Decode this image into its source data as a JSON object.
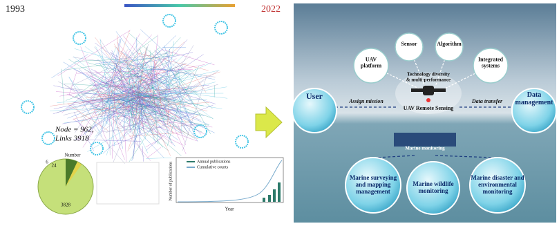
{
  "left": {
    "year_start": "1993",
    "year_end": "2022",
    "node_label": "Node = 962,",
    "links_label": "Links  3918",
    "pie": {
      "title": "Number",
      "labels": [
        "6",
        "24",
        "3828"
      ]
    },
    "line_chart": {
      "legend": [
        "Annual publications",
        "Cumulative counts"
      ],
      "y_label": "Number of publications",
      "x_label": "Year"
    }
  },
  "right": {
    "top_nodes": [
      [
        "UAV",
        "platform"
      ],
      [
        "Sensor"
      ],
      [
        "Algorithm"
      ],
      [
        "Integrated",
        "systems"
      ]
    ],
    "center": [
      "Technology diversity",
      "& multi-performance"
    ],
    "hub": "UAV Remote Sensing",
    "user": "User",
    "assign": "Assign mission",
    "transfer": "Data transfer",
    "data_mgmt": [
      "Data",
      "management"
    ],
    "monitoring": "Marine monitoring",
    "outcomes": [
      [
        "Marine surveying",
        "and mapping",
        "management"
      ],
      [
        "Marine wildlife",
        "monitoring"
      ],
      [
        "Marine disaster and",
        "environmental",
        "monitoring"
      ]
    ]
  }
}
